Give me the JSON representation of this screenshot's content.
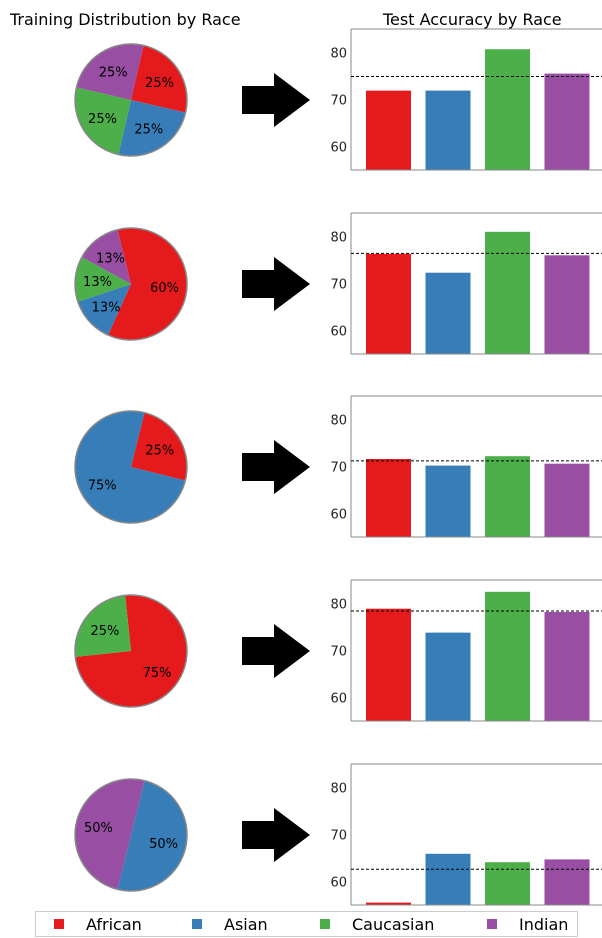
{
  "titles": {
    "left": "Training Distribution by Race",
    "right": "Test Accuracy by Race"
  },
  "legend": [
    {
      "name": "African",
      "color": "#e41a1c"
    },
    {
      "name": "Asian",
      "color": "#377eb8"
    },
    {
      "name": "Caucasian",
      "color": "#4daf4a"
    },
    {
      "name": "Indian",
      "color": "#984ea3"
    }
  ],
  "chart_data": [
    {
      "type": "pie",
      "categories": [
        "African",
        "Asian",
        "Caucasian",
        "Indian"
      ],
      "values": [
        25,
        25,
        25,
        25
      ],
      "labels": [
        "25%",
        "25%",
        "25%",
        "25%"
      ]
    },
    {
      "type": "bar",
      "categories": [
        "African",
        "Asian",
        "Caucasian",
        "Indian"
      ],
      "values": [
        71.9,
        71.9,
        80.7,
        75.5
      ],
      "reference_line": 74.9,
      "ylim": [
        55,
        85
      ],
      "yticks": [
        60,
        70,
        80
      ]
    },
    {
      "type": "pie",
      "categories": [
        "African",
        "Asian",
        "Caucasian",
        "Indian"
      ],
      "values": [
        60,
        13,
        13,
        13
      ],
      "labels": [
        "60%",
        "13%",
        "13%",
        "13%"
      ]
    },
    {
      "type": "bar",
      "categories": [
        "African",
        "Asian",
        "Caucasian",
        "Indian"
      ],
      "values": [
        76.3,
        72.3,
        81.0,
        76.0
      ],
      "reference_line": 76.4,
      "ylim": [
        55,
        85
      ],
      "yticks": [
        60,
        70,
        80
      ]
    },
    {
      "type": "pie",
      "categories": [
        "African",
        "Asian",
        "Caucasian",
        "Indian"
      ],
      "values": [
        25,
        75,
        0,
        0
      ],
      "labels": [
        "25%",
        "75%",
        "",
        ""
      ]
    },
    {
      "type": "bar",
      "categories": [
        "African",
        "Asian",
        "Caucasian",
        "Indian"
      ],
      "values": [
        71.6,
        70.2,
        72.2,
        70.6
      ],
      "reference_line": 71.2,
      "ylim": [
        55,
        85
      ],
      "yticks": [
        60,
        70,
        80
      ]
    },
    {
      "type": "pie",
      "categories": [
        "African",
        "Asian",
        "Caucasian",
        "Indian"
      ],
      "values": [
        75,
        0,
        25,
        0
      ],
      "labels": [
        "75%",
        "",
        "25%",
        ""
      ]
    },
    {
      "type": "bar",
      "categories": [
        "African",
        "Asian",
        "Caucasian",
        "Indian"
      ],
      "values": [
        78.9,
        73.8,
        82.5,
        78.2
      ],
      "reference_line": 78.4,
      "ylim": [
        55,
        85
      ],
      "yticks": [
        60,
        70,
        80
      ]
    },
    {
      "type": "pie",
      "categories": [
        "African",
        "Asian",
        "Caucasian",
        "Indian"
      ],
      "values": [
        0,
        50,
        0,
        50
      ],
      "labels": [
        "",
        "50%",
        "",
        "50%"
      ]
    },
    {
      "type": "bar",
      "categories": [
        "African",
        "Asian",
        "Caucasian",
        "Indian"
      ],
      "values": [
        55.5,
        65.9,
        64.1,
        64.7
      ],
      "reference_line": 62.6,
      "ylim": [
        55,
        85
      ],
      "yticks": [
        60,
        70,
        80
      ]
    }
  ]
}
